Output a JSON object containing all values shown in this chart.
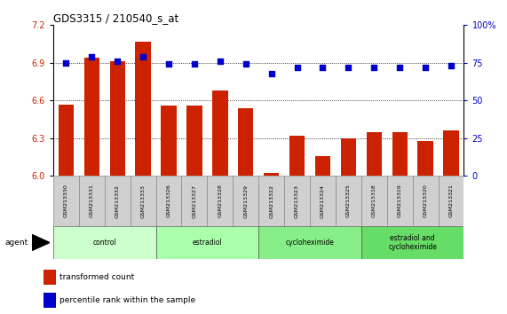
{
  "title": "GDS3315 / 210540_s_at",
  "samples": [
    "GSM213330",
    "GSM213331",
    "GSM213332",
    "GSM213333",
    "GSM213326",
    "GSM213327",
    "GSM213328",
    "GSM213329",
    "GSM213322",
    "GSM213323",
    "GSM213324",
    "GSM213325",
    "GSM213318",
    "GSM213319",
    "GSM213320",
    "GSM213321"
  ],
  "bar_values": [
    6.57,
    6.94,
    6.91,
    7.07,
    6.56,
    6.56,
    6.68,
    6.54,
    6.02,
    6.32,
    6.16,
    6.3,
    6.35,
    6.35,
    6.28,
    6.36
  ],
  "dot_values": [
    75,
    79,
    76,
    79,
    74,
    74,
    76,
    74,
    68,
    72,
    72,
    72,
    72,
    72,
    72,
    73
  ],
  "ylim_left": [
    6.0,
    7.2
  ],
  "ylim_right": [
    0,
    100
  ],
  "yticks_left": [
    6.0,
    6.3,
    6.6,
    6.9,
    7.2
  ],
  "yticks_right": [
    0,
    25,
    50,
    75,
    100
  ],
  "bar_color": "#cc2200",
  "dot_color": "#0000cc",
  "groups": [
    {
      "label": "control",
      "start": 0,
      "end": 4,
      "color": "#ccffcc"
    },
    {
      "label": "estradiol",
      "start": 4,
      "end": 8,
      "color": "#aaffaa"
    },
    {
      "label": "cycloheximide",
      "start": 8,
      "end": 12,
      "color": "#88ee88"
    },
    {
      "label": "estradiol and\ncycloheximide",
      "start": 12,
      "end": 16,
      "color": "#66dd66"
    }
  ],
  "agent_label": "agent",
  "legend_bar": "transformed count",
  "legend_dot": "percentile rank within the sample",
  "grid_color": "#000000",
  "bg_color": "#ffffff",
  "tick_label_color_left": "#cc2200",
  "tick_label_color_right": "#0000cc",
  "sample_box_color": "#d0d0d0",
  "bar_width": 0.6,
  "dot_size": 14
}
